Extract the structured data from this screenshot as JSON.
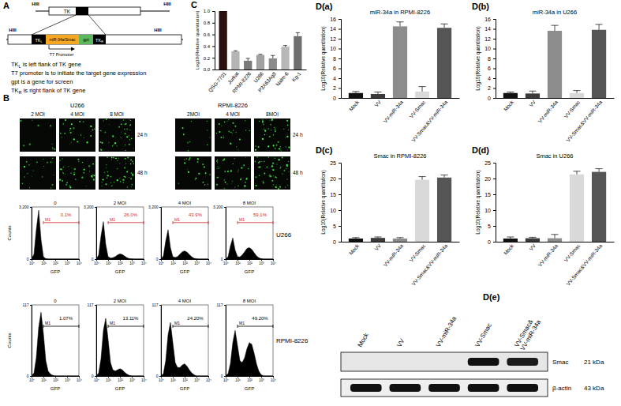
{
  "panel_labels": [
    "A",
    "B",
    "C",
    "D(a)",
    "D(b)",
    "D(c)",
    "D(d)",
    "D(e)"
  ],
  "construct": {
    "site_labels": [
      "HIII",
      "HIII",
      "HIII",
      "HIII"
    ],
    "top_gene": "TK",
    "left": {
      "base": "TK",
      "sub": "L"
    },
    "insert": "miR-34a/Smac",
    "marker_gene": "gpt",
    "right": {
      "base": "TK",
      "sub": "R"
    },
    "promoter": "T7 Promoter",
    "legend": [
      {
        "base": "TK",
        "sub": "L",
        "text": " is left flank of TK gene"
      },
      {
        "text": "T7 promoter is to initiate the target gene expression"
      },
      {
        "text": "gpt is a gene for screen"
      },
      {
        "base": "TK",
        "sub": "R",
        "text": " is right flank of TK gene"
      }
    ]
  },
  "fluorescence": {
    "groups": [
      {
        "title": "U266",
        "columns": [
          "2 MOI",
          "4 MOI",
          "8 MOI"
        ],
        "rows": [
          "24 h",
          "48 h"
        ]
      },
      {
        "title": "RPMI-8226",
        "columns": [
          "2MOI",
          "4 MOI",
          "8MOI"
        ],
        "rows": [
          "24 h",
          "48 h"
        ]
      }
    ]
  },
  "flow_rows": [
    "U266",
    "RPMI-8226"
  ],
  "chart_data": [
    {
      "type": "bar",
      "y_label": "Log10(Relative quantitation)",
      "categories": [
        "QSG-7701",
        "Jurkat",
        "RPMI-8226",
        "U266",
        "P3X63Ag8",
        "Nalm-6",
        "Kg-1"
      ],
      "values": [
        1.0,
        0.31,
        0.15,
        0.25,
        0.19,
        0.39,
        0.57
      ],
      "errors": [
        0,
        0.01,
        0.04,
        0.01,
        0.05,
        0.02,
        0.06
      ],
      "colors": [
        "#2b1010",
        "#b4b4b4",
        "#7a7a7a",
        "#a0a0a0",
        "#8a8a8a",
        "#b8b8b8",
        "#6e6e6e"
      ],
      "ylim": [
        0,
        1.0
      ],
      "yticks": [
        {
          "value": 0,
          "label": "0.0"
        },
        0.2,
        0.4,
        0.6,
        0.8,
        {
          "value": 1,
          "label": "1.0"
        }
      ]
    },
    {
      "type": "bar",
      "title": "miR-34a in RPMI-8226",
      "y_label": "Log10(Relative quantitation)",
      "categories": [
        "Mock",
        "VV",
        "VV-miR-34a",
        "VV-Smac",
        "VV-Smac&VV-miR-34a"
      ],
      "values": [
        1,
        0.8,
        14.5,
        1.3,
        14.2
      ],
      "errors": [
        0.3,
        0.4,
        0.9,
        1.0,
        0.8
      ],
      "colors": [
        "#111111",
        "#3a3a3a",
        "#8c8c8c",
        "#d9d9d9",
        "#555555"
      ],
      "ylim": [
        0,
        16
      ],
      "yticks": [
        0,
        2,
        4,
        6,
        8,
        10,
        12,
        14,
        16
      ]
    },
    {
      "type": "bar",
      "title": "miR-34a in U266",
      "y_label": "Log10(Relative quantitation)",
      "categories": [
        "Mock",
        "VV",
        "VV-miR-34a",
        "VV-Smac",
        "VV-Smac&VV-miR-34a"
      ],
      "values": [
        1,
        0.9,
        13.6,
        1.0,
        13.8
      ],
      "errors": [
        0.2,
        0.5,
        1.1,
        0.5,
        1.1
      ],
      "colors": [
        "#111111",
        "#3a3a3a",
        "#8c8c8c",
        "#d9d9d9",
        "#555555"
      ],
      "ylim": [
        0,
        16
      ],
      "yticks": [
        0,
        2,
        4,
        6,
        8,
        10,
        12,
        14,
        16
      ]
    },
    {
      "type": "bar",
      "title": "Smac in RPMI-8226",
      "y_label": "Log10(Relative quantitation)",
      "categories": [
        "Mock",
        "VV",
        "VV-miR-34a",
        "VV-Smac",
        "VV-Smac&VV-miR-34a"
      ],
      "values": [
        1,
        1.2,
        1.0,
        19.6,
        20.3
      ],
      "errors": [
        0.3,
        0.3,
        0.3,
        1.0,
        0.8
      ],
      "colors": [
        "#111111",
        "#3a3a3a",
        "#8c8c8c",
        "#d9d9d9",
        "#555555"
      ],
      "ylim": [
        0,
        25
      ],
      "yticks": [
        0,
        5,
        10,
        15,
        20,
        25
      ]
    },
    {
      "type": "bar",
      "title": "Smac in U266",
      "y_label": "Log10(Relative quantitation)",
      "categories": [
        "Mock",
        "VV",
        "VV-miR-34a",
        "VV-Smac",
        "VV-Smac&VV-miR-34a"
      ],
      "values": [
        1,
        1.1,
        1.1,
        21.3,
        22.1
      ],
      "errors": [
        0.5,
        0.3,
        1.2,
        1.0,
        1.0
      ],
      "colors": [
        "#111111",
        "#3a3a3a",
        "#8c8c8c",
        "#d9d9d9",
        "#555555"
      ],
      "ylim": [
        0,
        25
      ],
      "yticks": [
        0,
        5,
        10,
        15,
        20,
        25
      ]
    },
    {
      "type": "area",
      "title": "0",
      "x_label": "GFP",
      "y_label": "Counts",
      "log": "x",
      "color": "#000000",
      "x": [
        1,
        1.6,
        2.5,
        4,
        6.3,
        10,
        16,
        25,
        40,
        63,
        100,
        160,
        250,
        400,
        630,
        1000,
        1600,
        2500,
        4000,
        6300,
        10000
      ],
      "values": [
        0,
        300,
        1800,
        3000,
        1200,
        150,
        20,
        5,
        0,
        0,
        0,
        0,
        0,
        0,
        0,
        0,
        0,
        0,
        0,
        0,
        0
      ],
      "xlim": [
        1,
        10000
      ],
      "xticks": [
        {
          "value": 1,
          "label": "10⁰"
        },
        {
          "value": 10,
          "label": "10¹"
        },
        {
          "value": 100,
          "label": "10²"
        },
        {
          "value": 1000,
          "label": "10³"
        },
        {
          "value": 10000,
          "label": "10⁴"
        }
      ],
      "ylim": [
        0,
        3200
      ],
      "yticks": [
        0,
        {
          "value": 3200,
          "label": "3,200"
        }
      ],
      "gate": {
        "name": "M1",
        "label": "0.1%",
        "range": [
          10,
          10000
        ],
        "color": "#d62728"
      }
    },
    {
      "type": "area",
      "title": "2 MOI",
      "x_label": "GFP",
      "log": "x",
      "color": "#000000",
      "x": [
        1,
        1.6,
        2.5,
        4,
        6.3,
        10,
        16,
        25,
        40,
        63,
        100,
        160,
        250,
        400,
        630,
        1000,
        1600,
        2500,
        4000,
        6300,
        10000
      ],
      "values": [
        0,
        250,
        1400,
        2300,
        900,
        150,
        60,
        80,
        150,
        250,
        320,
        280,
        180,
        80,
        30,
        10,
        0,
        0,
        0,
        0,
        0
      ],
      "xlim": [
        1,
        10000
      ],
      "xticks": [
        {
          "value": 1,
          "label": "10⁰"
        },
        {
          "value": 10,
          "label": "10¹"
        },
        {
          "value": 100,
          "label": "10²"
        },
        {
          "value": 1000,
          "label": "10³"
        },
        {
          "value": 10000,
          "label": "10⁴"
        }
      ],
      "ylim": [
        0,
        3200
      ],
      "yticks": [
        0,
        {
          "value": 3200,
          "label": "3,200"
        }
      ],
      "gate": {
        "name": "M1",
        "label": "26.0%",
        "range": [
          10,
          10000
        ],
        "color": "#d62728"
      }
    },
    {
      "type": "area",
      "title": "4 MOI",
      "x_label": "GFP",
      "log": "x",
      "color": "#000000",
      "x": [
        1,
        1.6,
        2.5,
        4,
        6.3,
        10,
        16,
        25,
        40,
        63,
        100,
        160,
        250,
        400,
        630,
        1000,
        1600,
        2500,
        4000,
        6300,
        10000
      ],
      "values": [
        0,
        200,
        1100,
        1800,
        700,
        150,
        100,
        150,
        300,
        450,
        500,
        420,
        280,
        130,
        50,
        15,
        0,
        0,
        0,
        0,
        0
      ],
      "xlim": [
        1,
        10000
      ],
      "xticks": [
        {
          "value": 1,
          "label": "10⁰"
        },
        {
          "value": 10,
          "label": "10¹"
        },
        {
          "value": 100,
          "label": "10²"
        },
        {
          "value": 1000,
          "label": "10³"
        },
        {
          "value": 10000,
          "label": "10⁴"
        }
      ],
      "ylim": [
        0,
        3200
      ],
      "yticks": [
        0,
        {
          "value": 3200,
          "label": "3,200"
        }
      ],
      "gate": {
        "name": "M1",
        "label": "43.9%",
        "range": [
          10,
          10000
        ],
        "color": "#d62728"
      }
    },
    {
      "type": "area",
      "title": "8 MOI",
      "x_label": "GFP",
      "log": "x",
      "color": "#000000",
      "x": [
        1,
        1.6,
        2.5,
        4,
        6.3,
        10,
        16,
        25,
        40,
        63,
        100,
        160,
        250,
        400,
        630,
        1000,
        1600,
        2500,
        4000,
        6300,
        10000
      ],
      "values": [
        0,
        150,
        800,
        1300,
        550,
        150,
        130,
        250,
        450,
        650,
        700,
        600,
        400,
        200,
        80,
        20,
        0,
        0,
        0,
        0,
        0
      ],
      "xlim": [
        1,
        10000
      ],
      "xticks": [
        {
          "value": 1,
          "label": "10⁰"
        },
        {
          "value": 10,
          "label": "10¹"
        },
        {
          "value": 100,
          "label": "10²"
        },
        {
          "value": 1000,
          "label": "10³"
        },
        {
          "value": 10000,
          "label": "10⁴"
        }
      ],
      "ylim": [
        0,
        3200
      ],
      "yticks": [
        0,
        {
          "value": 3200,
          "label": "3,200"
        }
      ],
      "gate": {
        "name": "M1",
        "label": "59.1%",
        "range": [
          10,
          10000
        ],
        "color": "#d62728"
      }
    },
    {
      "type": "area",
      "title": "0",
      "x_label": "GFP",
      "y_label": "Counts",
      "log": "x",
      "color": "#000000",
      "x": [
        1,
        1.6,
        2.5,
        4,
        6.3,
        10,
        16,
        25,
        40,
        63,
        100,
        160,
        250,
        400,
        630,
        1000,
        1600,
        2500,
        4000,
        6300,
        10000
      ],
      "values": [
        0,
        5,
        30,
        80,
        105,
        70,
        25,
        8,
        3,
        1,
        0,
        0,
        0,
        0,
        0,
        0,
        0,
        0,
        0,
        0,
        0
      ],
      "xlim": [
        1,
        10000
      ],
      "xticks": [
        {
          "value": 1,
          "label": "10⁰"
        },
        {
          "value": 10,
          "label": "10¹"
        },
        {
          "value": 100,
          "label": "10²"
        },
        {
          "value": 1000,
          "label": "10³"
        },
        {
          "value": 10000,
          "label": "10⁴"
        }
      ],
      "ylim": [
        0,
        117
      ],
      "yticks": [
        0,
        117
      ],
      "gate": {
        "name": "M1",
        "label": "1.07%",
        "range": [
          10,
          10000
        ],
        "color": "#000000"
      }
    },
    {
      "type": "area",
      "title": "2 MOI",
      "x_label": "GFP",
      "log": "x",
      "color": "#000000",
      "x": [
        1,
        1.6,
        2.5,
        4,
        6.3,
        10,
        16,
        25,
        40,
        63,
        100,
        160,
        250,
        400,
        630,
        1000,
        1600,
        2500,
        4000,
        6300,
        10000
      ],
      "values": [
        0,
        5,
        28,
        75,
        95,
        60,
        22,
        10,
        8,
        10,
        12,
        10,
        6,
        3,
        1,
        0,
        0,
        0,
        0,
        0,
        0
      ],
      "xlim": [
        1,
        10000
      ],
      "xticks": [
        {
          "value": 1,
          "label": "10⁰"
        },
        {
          "value": 10,
          "label": "10¹"
        },
        {
          "value": 100,
          "label": "10²"
        },
        {
          "value": 1000,
          "label": "10³"
        },
        {
          "value": 10000,
          "label": "10⁴"
        }
      ],
      "ylim": [
        0,
        117
      ],
      "yticks": [
        0,
        117
      ],
      "gate": {
        "name": "M1",
        "label": "13.11%",
        "range": [
          10,
          10000
        ],
        "color": "#000000"
      }
    },
    {
      "type": "area",
      "title": "4 MOI",
      "x_label": "GFP",
      "log": "x",
      "color": "#000000",
      "x": [
        1,
        1.6,
        2.5,
        4,
        6.3,
        10,
        16,
        25,
        40,
        63,
        100,
        160,
        250,
        400,
        630,
        1000,
        1600,
        2500,
        4000,
        6300,
        10000
      ],
      "values": [
        0,
        4,
        25,
        68,
        88,
        55,
        22,
        14,
        14,
        18,
        20,
        16,
        10,
        5,
        2,
        0,
        0,
        0,
        0,
        0,
        0
      ],
      "xlim": [
        1,
        10000
      ],
      "xticks": [
        {
          "value": 1,
          "label": "10⁰"
        },
        {
          "value": 10,
          "label": "10¹"
        },
        {
          "value": 100,
          "label": "10²"
        },
        {
          "value": 1000,
          "label": "10³"
        },
        {
          "value": 10000,
          "label": "10⁴"
        }
      ],
      "ylim": [
        0,
        117
      ],
      "yticks": [
        0,
        117
      ],
      "gate": {
        "name": "M1",
        "label": "24.20%",
        "range": [
          10,
          10000
        ],
        "color": "#000000"
      }
    },
    {
      "type": "area",
      "title": "8 MOI",
      "x_label": "GFP",
      "log": "x",
      "color": "#000000",
      "x": [
        1,
        1.6,
        2.5,
        4,
        6.3,
        10,
        16,
        25,
        40,
        63,
        100,
        160,
        250,
        400,
        630,
        1000,
        1600,
        2500,
        4000,
        6300,
        10000
      ],
      "values": [
        0,
        4,
        20,
        55,
        75,
        50,
        25,
        22,
        30,
        45,
        55,
        52,
        38,
        20,
        8,
        2,
        0,
        0,
        0,
        0,
        0
      ],
      "xlim": [
        1,
        10000
      ],
      "xticks": [
        {
          "value": 1,
          "label": "10⁰"
        },
        {
          "value": 10,
          "label": "10¹"
        },
        {
          "value": 100,
          "label": "10²"
        },
        {
          "value": 1000,
          "label": "10³"
        },
        {
          "value": 10000,
          "label": "10⁴"
        }
      ],
      "ylim": [
        0,
        117
      ],
      "yticks": [
        0,
        117
      ],
      "gate": {
        "name": "M1",
        "label": "49.20%",
        "range": [
          10,
          10000
        ],
        "color": "#000000"
      }
    }
  ],
  "western_blot": {
    "lanes": [
      "Mock",
      "VV",
      "VV-miR-34a",
      "VV-Smac",
      [
        "VV-Smac&",
        "VV-miR-34a"
      ]
    ],
    "rows": [
      {
        "name": "Smac",
        "size": "21 kDa",
        "intensity": [
          0,
          0,
          0,
          1,
          0.95
        ]
      },
      {
        "name": "β-actin",
        "size": "43 kDa",
        "intensity": [
          1,
          1,
          1,
          1,
          1
        ]
      }
    ]
  }
}
